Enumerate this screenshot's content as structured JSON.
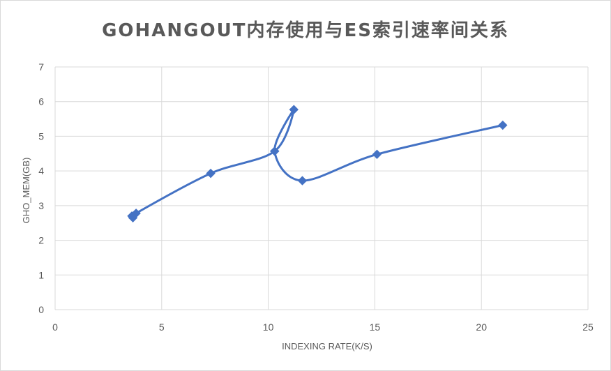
{
  "chart_data": {
    "type": "scatter",
    "title": "GOHANGOUT内存使用与ES索引速率间关系",
    "xlabel": "INDEXING RATE(K/S)",
    "ylabel": "GHO_MEM(GB)",
    "xlim": [
      0,
      25
    ],
    "ylim": [
      0,
      7
    ],
    "x_ticks": [
      0,
      5,
      10,
      15,
      20,
      25
    ],
    "y_ticks": [
      0,
      1,
      2,
      3,
      4,
      5,
      6,
      7
    ],
    "grid": true,
    "legend": "none",
    "marker": "diamond",
    "smoothed_line": true,
    "series": [
      {
        "color": "#4472c4",
        "points": [
          {
            "x": 3.6,
            "y": 2.7
          },
          {
            "x": 3.65,
            "y": 2.65
          },
          {
            "x": 3.8,
            "y": 2.78
          },
          {
            "x": 7.3,
            "y": 3.93
          },
          {
            "x": 10.3,
            "y": 4.57
          },
          {
            "x": 11.2,
            "y": 5.77
          },
          {
            "x": 10.3,
            "y": 4.57
          },
          {
            "x": 11.6,
            "y": 3.72
          },
          {
            "x": 15.1,
            "y": 4.48
          },
          {
            "x": 21.0,
            "y": 5.32
          }
        ]
      }
    ]
  }
}
